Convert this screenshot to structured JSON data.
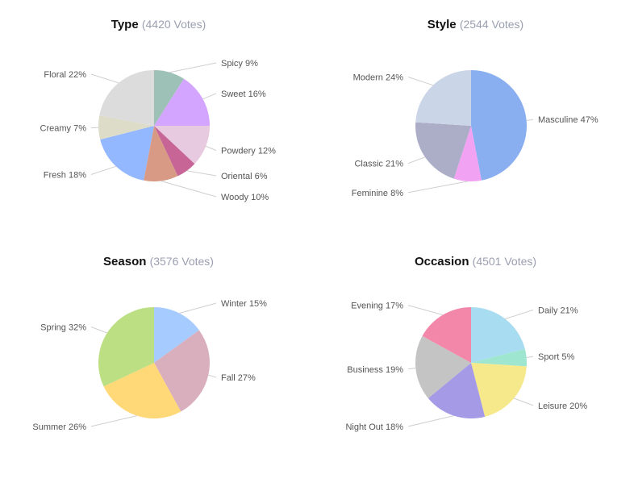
{
  "chart_data": [
    {
      "type": "pie",
      "title": "Type",
      "subtitle": "(4420 Votes)",
      "slices": [
        {
          "label": "Spicy",
          "value": 9,
          "text": "Spicy 9%",
          "color": "#9dc0b7"
        },
        {
          "label": "Sweet",
          "value": 16,
          "text": "Sweet 16%",
          "color": "#d4a5ff"
        },
        {
          "label": "Powdery",
          "value": 12,
          "text": "Powdery 12%",
          "color": "#e7c9e0"
        },
        {
          "label": "Oriental",
          "value": 6,
          "text": "Oriental 6%",
          "color": "#c66596"
        },
        {
          "label": "Woody",
          "value": 10,
          "text": "Woody 10%",
          "color": "#d89a85"
        },
        {
          "label": "Fresh",
          "value": 18,
          "text": "Fresh 18%",
          "color": "#93b8ff"
        },
        {
          "label": "Creamy",
          "value": 7,
          "text": "Creamy 7%",
          "color": "#dcdcc9"
        },
        {
          "label": "Floral",
          "value": 22,
          "text": "Floral 22%",
          "color": "#dcdcdc"
        }
      ]
    },
    {
      "type": "pie",
      "title": "Style",
      "subtitle": "(2544 Votes)",
      "slices": [
        {
          "label": "Masculine",
          "value": 47,
          "text": "Masculine 47%",
          "color": "#8aaff0"
        },
        {
          "label": "Feminine",
          "value": 8,
          "text": "Feminine 8%",
          "color": "#f2a2f2"
        },
        {
          "label": "Classic",
          "value": 21,
          "text": "Classic 21%",
          "color": "#acaec8"
        },
        {
          "label": "Modern",
          "value": 24,
          "text": "Modern 24%",
          "color": "#cbd5e8"
        }
      ]
    },
    {
      "type": "pie",
      "title": "Season",
      "subtitle": "(3576 Votes)",
      "slices": [
        {
          "label": "Winter",
          "value": 15,
          "text": "Winter 15%",
          "color": "#a6ccff"
        },
        {
          "label": "Fall",
          "value": 27,
          "text": "Fall 27%",
          "color": "#d9afbd"
        },
        {
          "label": "Summer",
          "value": 26,
          "text": "Summer 26%",
          "color": "#ffd878"
        },
        {
          "label": "Spring",
          "value": 32,
          "text": "Spring 32%",
          "color": "#bddf83"
        }
      ]
    },
    {
      "type": "pie",
      "title": "Occasion",
      "subtitle": "(4501 Votes)",
      "slices": [
        {
          "label": "Daily",
          "value": 21,
          "text": "Daily 21%",
          "color": "#a8dcf1"
        },
        {
          "label": "Sport",
          "value": 5,
          "text": "Sport 5%",
          "color": "#9ee6d0"
        },
        {
          "label": "Leisure",
          "value": 20,
          "text": "Leisure 20%",
          "color": "#f5e98b"
        },
        {
          "label": "Night Out",
          "value": 18,
          "text": "Night Out 18%",
          "color": "#a59ae6"
        },
        {
          "label": "Business",
          "value": 19,
          "text": "Business 19%",
          "color": "#c4c4c4"
        },
        {
          "label": "Evening",
          "value": 17,
          "text": "Evening 17%",
          "color": "#f387aa"
        }
      ]
    }
  ]
}
